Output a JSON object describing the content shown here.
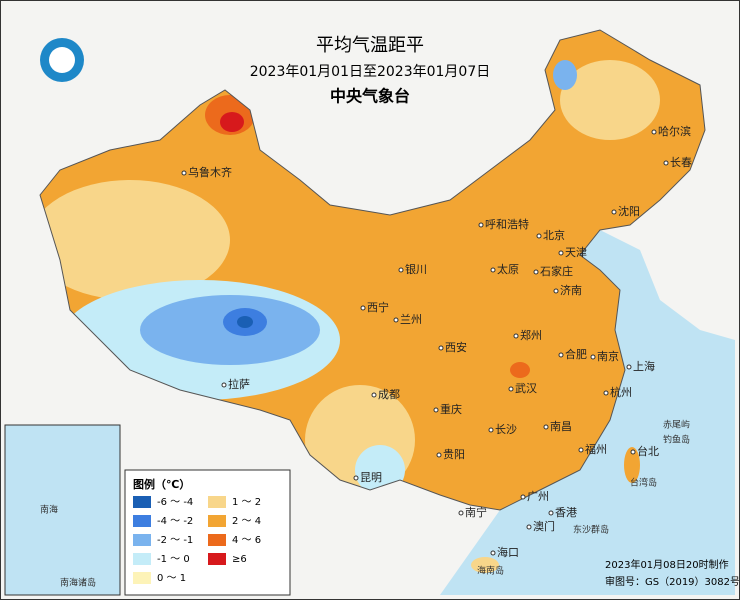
{
  "title": "平均气温距平",
  "subtitle": "2023年01月01日至2023年01月07日",
  "agency": "中央气象台",
  "legend": {
    "title": "图例（℃）",
    "items": [
      {
        "label": "-6 ～ -4",
        "color": "#1a5fb4"
      },
      {
        "label": "-4 ～ -2",
        "color": "#3d7ee0"
      },
      {
        "label": "-2 ～ -1",
        "color": "#7ab3ee"
      },
      {
        "label": "-1 ～ 0",
        "color": "#c4ecf8"
      },
      {
        "label": "0 ～ 1",
        "color": "#fdf3b8"
      },
      {
        "label": "1 ～ 2",
        "color": "#f8d68a"
      },
      {
        "label": "2 ～ 4",
        "color": "#f2a533"
      },
      {
        "label": "4 ～ 6",
        "color": "#ec6a1c"
      },
      {
        "label": "≥6",
        "color": "#d7191c"
      }
    ]
  },
  "cities": [
    "乌鲁木齐",
    "哈尔滨",
    "长春",
    "沈阳",
    "呼和浩特",
    "北京",
    "天津",
    "银川",
    "太原",
    "石家庄",
    "济南",
    "西宁",
    "兰州",
    "郑州",
    "西安",
    "合肥",
    "南京",
    "上海",
    "拉萨",
    "成都",
    "武汉",
    "杭州",
    "重庆",
    "长沙",
    "南昌",
    "福州",
    "台北",
    "贵阳",
    "昆明",
    "广州",
    "南宁",
    "香港",
    "澳门",
    "海口"
  ],
  "labels": [
    "台湾岛",
    "赤尾屿",
    "钓鱼岛",
    "东沙群岛",
    "海南岛",
    "南海",
    "南海诸岛"
  ],
  "footer": {
    "made": "2023年01月08日20时制作",
    "approval": "审图号：GS（2019）3082号"
  }
}
